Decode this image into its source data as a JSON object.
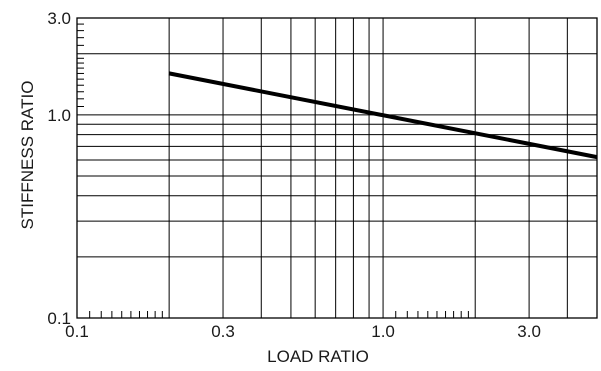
{
  "chart_data": {
    "type": "line",
    "xlabel": "LOAD RATIO",
    "ylabel": "STIFFNESS RATIO",
    "xscale": "log",
    "yscale": "log",
    "xlim": [
      0.1,
      5.0
    ],
    "ylim": [
      0.1,
      3.0
    ],
    "grid": true,
    "x_tick_labels": [
      {
        "value": 0.1,
        "label": "0.1"
      },
      {
        "value": 0.3,
        "label": "0.3"
      },
      {
        "value": 1.0,
        "label": "1.0"
      },
      {
        "value": 3.0,
        "label": "3.0"
      }
    ],
    "y_tick_labels": [
      {
        "value": 0.1,
        "label": "0.1"
      },
      {
        "value": 1.0,
        "label": "1.0"
      },
      {
        "value": 3.0,
        "label": "3.0"
      }
    ],
    "x_gridlines": [
      0.2,
      0.3,
      0.4,
      0.5,
      0.6,
      0.7,
      0.8,
      0.9,
      1.0,
      2.0,
      3.0,
      4.0,
      5.0
    ],
    "y_gridlines": [
      0.2,
      0.3,
      0.4,
      0.5,
      0.6,
      0.7,
      0.8,
      0.9,
      1.0,
      2.0,
      3.0
    ],
    "x_minor_ticks": [
      0.11,
      0.12,
      0.13,
      0.14,
      0.15,
      0.16,
      0.17,
      0.18,
      0.19,
      1.1,
      1.2,
      1.3,
      1.4,
      1.5,
      1.6,
      1.7,
      1.8,
      1.9
    ],
    "y_minor_ticks": [
      1.1,
      1.2,
      1.3,
      1.4,
      1.5,
      1.6,
      1.7,
      1.8,
      1.9,
      2.2,
      2.4,
      2.6,
      2.8
    ],
    "series": [
      {
        "x": [
          0.2,
          5.0
        ],
        "y": [
          1.6,
          0.62
        ],
        "color": "#000000"
      }
    ]
  }
}
